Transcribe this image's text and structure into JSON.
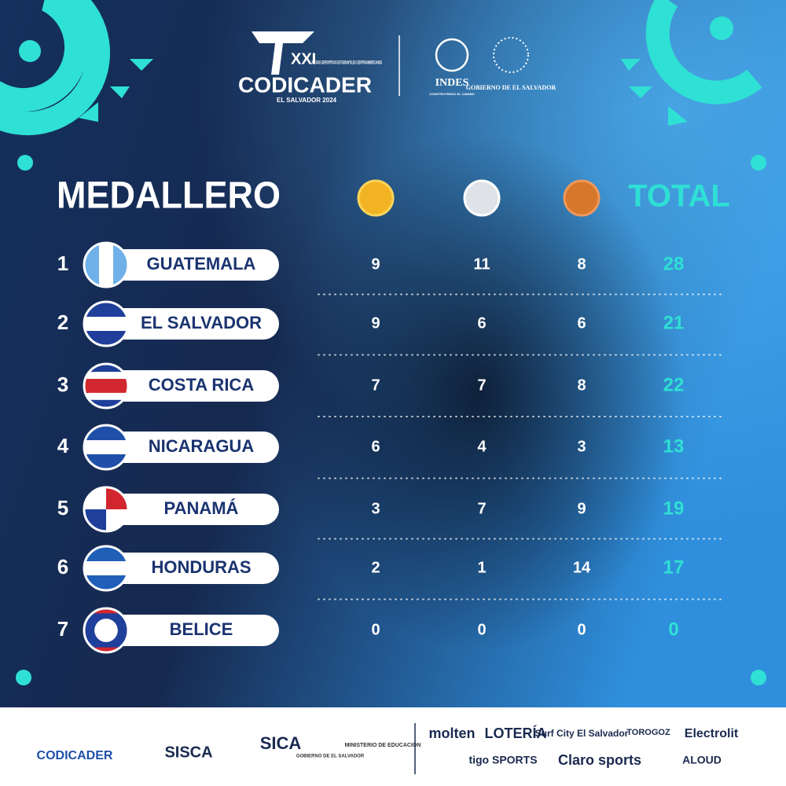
{
  "header": {
    "edition": "XXI",
    "games": "JUEGOS DEPORTIVOS ESTUDIANTILES CENTROAMERICANOS",
    "brand": "CODICADER",
    "host": "EL SALVADOR 2024",
    "indes": "INDES",
    "indes_tagline": "CONSTRUYENDO EL CAMINO",
    "government": "GOBIERNO DE EL SALVADOR"
  },
  "table": {
    "title": "MEDALLERO",
    "total_label": "TOTAL",
    "rows": [
      {
        "rank": 1,
        "country": "GUATEMALA",
        "gold": 9,
        "silver": 11,
        "bronze": 8,
        "total": 28
      },
      {
        "rank": 2,
        "country": "EL SALVADOR",
        "gold": 9,
        "silver": 6,
        "bronze": 6,
        "total": 21
      },
      {
        "rank": 3,
        "country": "COSTA RICA",
        "gold": 7,
        "silver": 7,
        "bronze": 8,
        "total": 22
      },
      {
        "rank": 4,
        "country": "NICARAGUA",
        "gold": 6,
        "silver": 4,
        "bronze": 3,
        "total": 13
      },
      {
        "rank": 5,
        "country": "PANAMÁ",
        "gold": 3,
        "silver": 7,
        "bronze": 9,
        "total": 19
      },
      {
        "rank": 6,
        "country": "HONDURAS",
        "gold": 2,
        "silver": 1,
        "bronze": 14,
        "total": 17
      },
      {
        "rank": 7,
        "country": "BELICE",
        "gold": 0,
        "silver": 0,
        "bronze": 0,
        "total": 0
      }
    ]
  },
  "footer": {
    "sponsors": [
      "CODICADER",
      "SISCA",
      "SICA",
      "GOBIERNO DE EL SALVADOR",
      "MINISTERIO DE EDUCACIÓN",
      "molten",
      "LOTERÍA",
      "Surf City El Salvador",
      "TOROGOZ",
      "Electrolit",
      "tigo SPORTS",
      "Claro sports",
      "ALOUD"
    ]
  }
}
